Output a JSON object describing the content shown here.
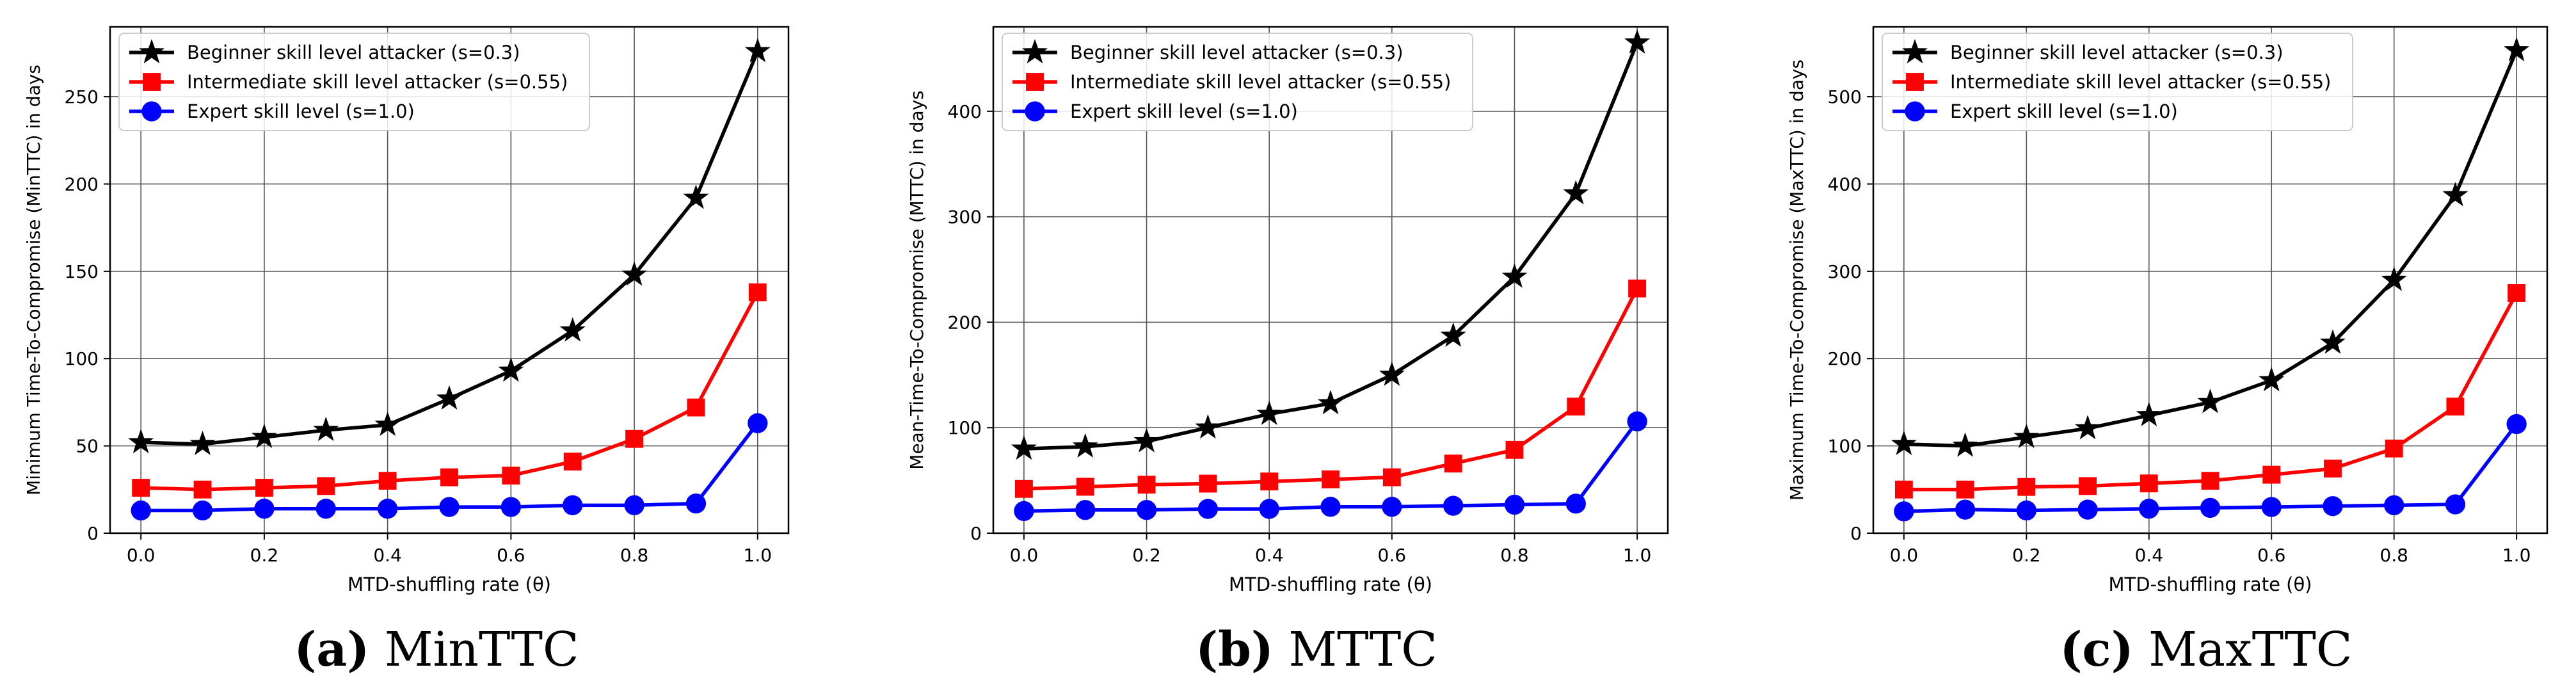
{
  "colors": {
    "black": "#000000",
    "red": "#ff0000",
    "blue": "#0000ff",
    "grid": "#b0b0b0"
  },
  "chart_data": [
    {
      "type": "line",
      "xlabel": "MTD-shuffling rate (θ)",
      "ylabel": "Minimum Time-To-Compromise (MinTTC) in days",
      "xlim": [
        -0.05,
        1.05
      ],
      "ylim": [
        0,
        290
      ],
      "xticks": [
        "0.0",
        "0.2",
        "0.4",
        "0.6",
        "0.8",
        "1.0"
      ],
      "xtick_values": [
        0.0,
        0.2,
        0.4,
        0.6,
        0.8,
        1.0
      ],
      "yticks": [
        "0",
        "50",
        "100",
        "150",
        "200",
        "250"
      ],
      "ytick_values": [
        0,
        50,
        100,
        150,
        200,
        250
      ],
      "grid": true,
      "legend_loc": "upper-left",
      "x": [
        0.0,
        0.1,
        0.2,
        0.3,
        0.4,
        0.5,
        0.6,
        0.7,
        0.8,
        0.9,
        1.0
      ],
      "series": [
        {
          "name": "Beginner skill level attacker (s=0.3)",
          "color": "#000000",
          "marker": "star",
          "values": [
            52,
            51,
            55,
            59,
            62,
            77,
            93,
            116,
            148,
            192,
            276
          ]
        },
        {
          "name": "Intermediate skill level attacker (s=0.55)",
          "color": "#ff0000",
          "marker": "square",
          "values": [
            26,
            25,
            26,
            27,
            30,
            32,
            33,
            41,
            54,
            72,
            138
          ]
        },
        {
          "name": "Expert skill level (s=1.0)",
          "color": "#0000ff",
          "marker": "circle",
          "values": [
            13,
            13,
            14,
            14,
            14,
            15,
            15,
            16,
            16,
            17,
            63
          ]
        }
      ],
      "caption_letter": "(a)",
      "caption_text": "MinTTC"
    },
    {
      "type": "line",
      "xlabel": "MTD-shuffling rate (θ)",
      "ylabel": "Mean-Time-To-Compromise (MTTC) in days",
      "xlim": [
        -0.05,
        1.05
      ],
      "ylim": [
        0,
        480
      ],
      "xticks": [
        "0.0",
        "0.2",
        "0.4",
        "0.6",
        "0.8",
        "1.0"
      ],
      "xtick_values": [
        0.0,
        0.2,
        0.4,
        0.6,
        0.8,
        1.0
      ],
      "yticks": [
        "0",
        "100",
        "200",
        "300",
        "400"
      ],
      "ytick_values": [
        0,
        100,
        200,
        300,
        400
      ],
      "grid": true,
      "legend_loc": "upper-left",
      "x": [
        0.0,
        0.1,
        0.2,
        0.3,
        0.4,
        0.5,
        0.6,
        0.7,
        0.8,
        0.9,
        1.0
      ],
      "series": [
        {
          "name": "Beginner skill level attacker (s=0.3)",
          "color": "#000000",
          "marker": "star",
          "values": [
            80,
            82,
            87,
            100,
            113,
            123,
            150,
            187,
            243,
            322,
            465
          ]
        },
        {
          "name": "Intermediate skill level attacker (s=0.55)",
          "color": "#ff0000",
          "marker": "square",
          "values": [
            42,
            44,
            46,
            47,
            49,
            51,
            53,
            66,
            79,
            120,
            232
          ]
        },
        {
          "name": "Expert skill level (s=1.0)",
          "color": "#0000ff",
          "marker": "circle",
          "values": [
            21,
            22,
            22,
            23,
            23,
            25,
            25,
            26,
            27,
            28,
            106
          ]
        }
      ],
      "caption_letter": "(b)",
      "caption_text": "MTTC"
    },
    {
      "type": "line",
      "xlabel": "MTD-shuffling rate (θ)",
      "ylabel": "Maximum Time-To-Compromise (MaxTTC) in days",
      "xlim": [
        -0.05,
        1.05
      ],
      "ylim": [
        0,
        580
      ],
      "xticks": [
        "0.0",
        "0.2",
        "0.4",
        "0.6",
        "0.8",
        "1.0"
      ],
      "xtick_values": [
        0.0,
        0.2,
        0.4,
        0.6,
        0.8,
        1.0
      ],
      "yticks": [
        "0",
        "100",
        "200",
        "300",
        "400",
        "500"
      ],
      "ytick_values": [
        0,
        100,
        200,
        300,
        400,
        500
      ],
      "grid": true,
      "legend_loc": "upper-left",
      "x": [
        0.0,
        0.1,
        0.2,
        0.3,
        0.4,
        0.5,
        0.6,
        0.7,
        0.8,
        0.9,
        1.0
      ],
      "series": [
        {
          "name": "Beginner skill level attacker (s=0.3)",
          "color": "#000000",
          "marker": "star",
          "values": [
            102,
            100,
            110,
            120,
            135,
            150,
            175,
            218,
            290,
            387,
            553
          ]
        },
        {
          "name": "Intermediate skill level attacker (s=0.55)",
          "color": "#ff0000",
          "marker": "square",
          "values": [
            50,
            50,
            53,
            54,
            57,
            60,
            67,
            74,
            97,
            145,
            275
          ]
        },
        {
          "name": "Expert skill level (s=1.0)",
          "color": "#0000ff",
          "marker": "circle",
          "values": [
            25,
            27,
            26,
            27,
            28,
            29,
            30,
            31,
            32,
            33,
            125
          ]
        }
      ],
      "caption_letter": "(c)",
      "caption_text": "MaxTTC"
    }
  ]
}
